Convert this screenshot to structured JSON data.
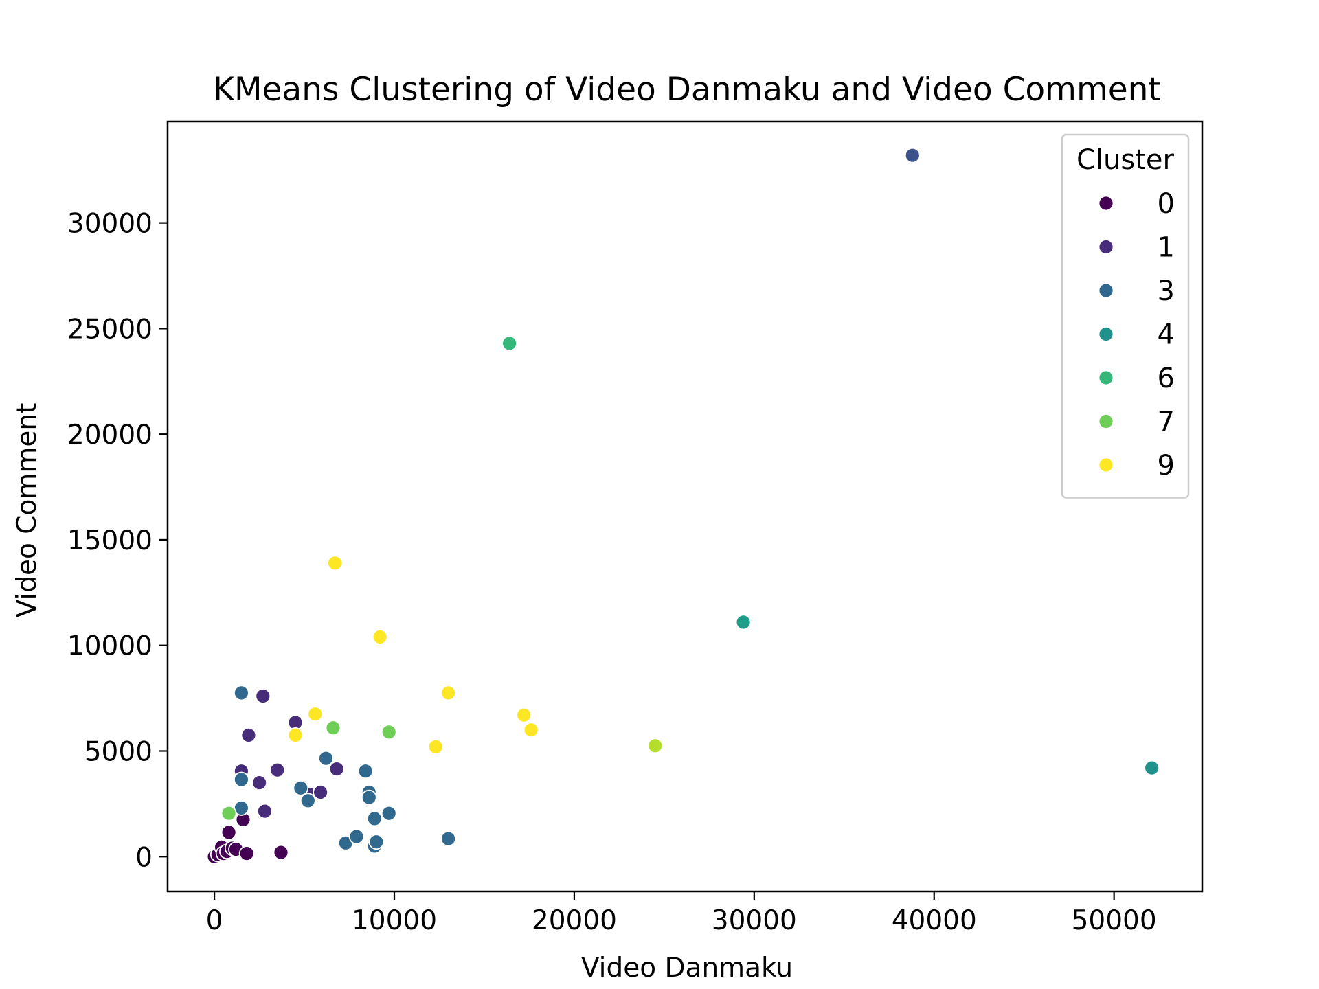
{
  "chart_data": {
    "type": "scatter",
    "title": "KMeans Clustering of Video Danmaku and Video Comment",
    "xlabel": "Video Danmaku",
    "ylabel": "Video Comment",
    "xlim": [
      -2600,
      54900
    ],
    "ylim": [
      -1650,
      34800
    ],
    "xticks": [
      0,
      10000,
      20000,
      30000,
      40000,
      50000
    ],
    "xtick_labels": [
      "0",
      "10000",
      "20000",
      "30000",
      "40000",
      "50000"
    ],
    "yticks": [
      0,
      5000,
      10000,
      15000,
      20000,
      25000,
      30000
    ],
    "ytick_labels": [
      "0",
      "5000",
      "10000",
      "15000",
      "20000",
      "25000",
      "30000"
    ],
    "grid": false,
    "legend": {
      "title": "Cluster",
      "placement": "top-right",
      "entries": [
        {
          "label": "0",
          "color": "#440154"
        },
        {
          "label": "1",
          "color": "#472c7a"
        },
        {
          "label": "3",
          "color": "#31688e"
        },
        {
          "label": "4",
          "color": "#21918c"
        },
        {
          "label": "6",
          "color": "#35b779"
        },
        {
          "label": "7",
          "color": "#6ece58"
        },
        {
          "label": "9",
          "color": "#fde725"
        }
      ]
    },
    "series": [
      {
        "cluster": 0,
        "color": "#440154",
        "points": [
          [
            0,
            0
          ],
          [
            200,
            100
          ],
          [
            400,
            450
          ],
          [
            500,
            150
          ],
          [
            700,
            250
          ],
          [
            800,
            1150
          ],
          [
            1000,
            400
          ],
          [
            1200,
            350
          ],
          [
            1600,
            1750
          ],
          [
            1800,
            150
          ],
          [
            3700,
            200
          ]
        ]
      },
      {
        "cluster": 1,
        "color": "#472c7a",
        "points": [
          [
            1500,
            4050
          ],
          [
            1900,
            5750
          ],
          [
            2500,
            3500
          ],
          [
            2700,
            7600
          ],
          [
            2800,
            2150
          ],
          [
            3500,
            4100
          ],
          [
            4500,
            6350
          ],
          [
            5300,
            2950
          ],
          [
            5900,
            3050
          ],
          [
            6800,
            4150
          ]
        ]
      },
      {
        "cluster": 2,
        "color": "#3b528b",
        "points": [
          [
            38800,
            33200
          ]
        ]
      },
      {
        "cluster": 3,
        "color": "#31688e",
        "points": [
          [
            1500,
            7750
          ],
          [
            1500,
            2300
          ],
          [
            1500,
            3650
          ],
          [
            4800,
            3250
          ],
          [
            5200,
            2650
          ],
          [
            6200,
            4650
          ],
          [
            7300,
            650
          ],
          [
            7900,
            950
          ],
          [
            8400,
            4050
          ],
          [
            8600,
            3050
          ],
          [
            8600,
            2800
          ],
          [
            8900,
            1800
          ],
          [
            8900,
            500
          ],
          [
            9000,
            700
          ],
          [
            9700,
            2050
          ],
          [
            13000,
            850
          ]
        ]
      },
      {
        "cluster": 4,
        "color": "#21918c",
        "points": [
          [
            52100,
            4200
          ]
        ]
      },
      {
        "cluster": 5,
        "color": "#1f9e89",
        "points": [
          [
            29400,
            11100
          ]
        ]
      },
      {
        "cluster": 6,
        "color": "#35b779",
        "points": [
          [
            16400,
            24300
          ]
        ]
      },
      {
        "cluster": 7,
        "color": "#6ece58",
        "points": [
          [
            800,
            2050
          ],
          [
            6600,
            6100
          ],
          [
            9700,
            5900
          ]
        ]
      },
      {
        "cluster": 8,
        "color": "#b5de2b",
        "points": [
          [
            24500,
            5250
          ]
        ]
      },
      {
        "cluster": 9,
        "color": "#fde725",
        "points": [
          [
            4500,
            5750
          ],
          [
            5600,
            6750
          ],
          [
            6700,
            13900
          ],
          [
            9200,
            10400
          ],
          [
            12300,
            5200
          ],
          [
            13000,
            7750
          ],
          [
            17200,
            6700
          ],
          [
            17600,
            6000
          ]
        ]
      }
    ]
  }
}
